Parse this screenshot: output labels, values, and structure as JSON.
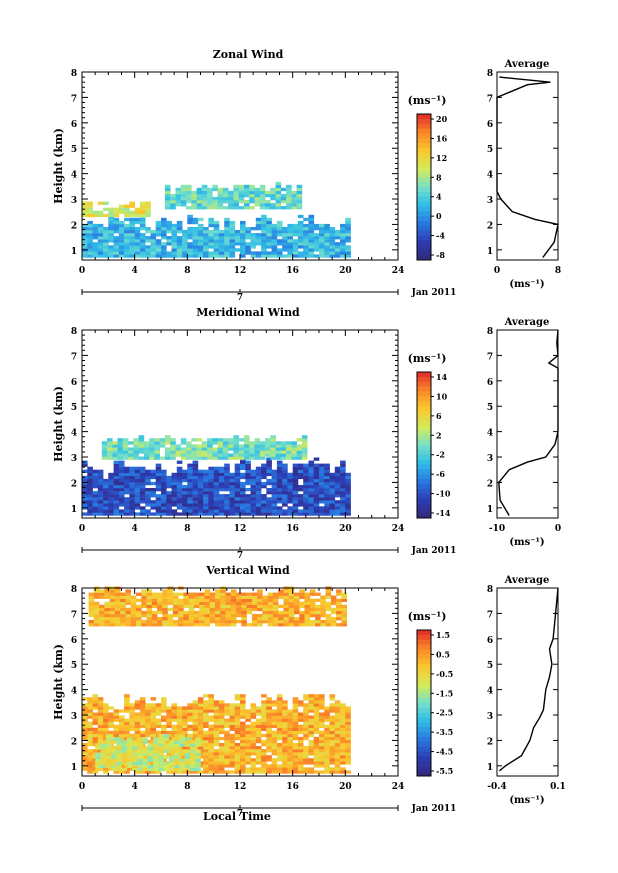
{
  "date_label": "Jan 2011",
  "x_bottom_label": "Local Time",
  "date_marker": "7",
  "xticks": [
    "0",
    "4",
    "8",
    "12",
    "16",
    "20",
    "24"
  ],
  "yticks": [
    "1",
    "2",
    "3",
    "4",
    "5",
    "6",
    "7",
    "8"
  ],
  "ylabel": "Height (km)",
  "unit": "(ms⁻¹)",
  "panels": [
    {
      "title": "Zonal Wind",
      "colorbar_ticks": [
        "20",
        "16",
        "12",
        "8",
        "4",
        "0",
        "-4",
        "-8"
      ],
      "avg_title": "Average",
      "avg_xticks": [
        "0",
        "8"
      ],
      "avg_xlabel": "(ms⁻¹)"
    },
    {
      "title": "Meridional Wind",
      "colorbar_ticks": [
        "14",
        "10",
        "6",
        "2",
        "-2",
        "-6",
        "-10",
        "-14"
      ],
      "avg_title": "Average",
      "avg_xticks": [
        "-10",
        "0"
      ],
      "avg_xlabel": "(ms⁻¹)"
    },
    {
      "title": "Vertical Wind",
      "colorbar_ticks": [
        "1.5",
        "0.5",
        "-0.5",
        "-1.5",
        "-2.5",
        "-3.5",
        "-4.5",
        "-5.5"
      ],
      "avg_title": "Average",
      "avg_xticks": [
        "-0.4",
        "0.1"
      ],
      "avg_xlabel": "(ms⁻¹)"
    }
  ],
  "chart_data": [
    {
      "type": "heatmap",
      "title": "Zonal Wind",
      "x_range": [
        0,
        24
      ],
      "y_range": [
        0.6,
        8
      ],
      "ylabel": "Height (km)",
      "colorbar_range": [
        -10,
        22
      ],
      "regions": [
        {
          "x": [
            0,
            20
          ],
          "y": [
            0.7,
            2.3
          ],
          "value": 2
        },
        {
          "x": [
            0,
            5
          ],
          "y": [
            2.3,
            2.9
          ],
          "value": 11
        },
        {
          "x": [
            6.3,
            16.5
          ],
          "y": [
            2.6,
            3.6
          ],
          "value": 5
        }
      ],
      "average_profile": {
        "xlim": [
          0,
          8
        ],
        "points": [
          [
            6,
            0.7
          ],
          [
            7.5,
            1.3
          ],
          [
            8,
            2.0
          ],
          [
            5,
            2.2
          ],
          [
            2,
            2.5
          ],
          [
            0.5,
            3.0
          ],
          [
            0,
            3.3
          ],
          [
            0,
            7.0
          ],
          [
            4,
            7.5
          ],
          [
            7,
            7.6
          ],
          [
            0.3,
            7.8
          ]
        ]
      }
    },
    {
      "type": "heatmap",
      "title": "Meridional Wind",
      "x_range": [
        0,
        24
      ],
      "y_range": [
        0.6,
        8
      ],
      "ylabel": "Height (km)",
      "colorbar_range": [
        -16,
        16
      ],
      "regions": [
        {
          "x": [
            0,
            20
          ],
          "y": [
            0.7,
            2.9
          ],
          "value": -11
        },
        {
          "x": [
            1.5,
            17
          ],
          "y": [
            2.9,
            3.8
          ],
          "value": 0
        }
      ],
      "average_profile": {
        "xlim": [
          -10,
          0
        ],
        "points": [
          [
            -8,
            0.7
          ],
          [
            -9.5,
            1.3
          ],
          [
            -9.7,
            2.0
          ],
          [
            -8,
            2.5
          ],
          [
            -5,
            2.8
          ],
          [
            -2,
            3.0
          ],
          [
            -0.5,
            3.5
          ],
          [
            0,
            4.0
          ],
          [
            0,
            6.5
          ],
          [
            -1.5,
            6.7
          ],
          [
            0,
            7.0
          ],
          [
            -0.2,
            7.5
          ],
          [
            0,
            8
          ]
        ]
      }
    },
    {
      "type": "heatmap",
      "title": "Vertical Wind",
      "x_range": [
        0,
        24
      ],
      "y_range": [
        0.6,
        8
      ],
      "ylabel": "Height (km)",
      "colorbar_range": [
        -6,
        2
      ],
      "regions": [
        {
          "x": [
            0,
            20
          ],
          "y": [
            0.7,
            3.8
          ],
          "value": 0.3
        },
        {
          "x": [
            1,
            9
          ],
          "y": [
            0.8,
            2.2
          ],
          "value": -1.0
        },
        {
          "x": [
            0.5,
            20
          ],
          "y": [
            6.5,
            8.0
          ],
          "value": 0.3
        }
      ],
      "average_profile": {
        "xlim": [
          -0.4,
          0.1
        ],
        "points": [
          [
            -0.38,
            0.8
          ],
          [
            -0.33,
            1.0
          ],
          [
            -0.2,
            1.4
          ],
          [
            -0.13,
            2.0
          ],
          [
            -0.1,
            2.5
          ],
          [
            -0.05,
            2.9
          ],
          [
            -0.02,
            3.2
          ],
          [
            0.0,
            4.0
          ],
          [
            0.03,
            4.5
          ],
          [
            0.05,
            5.0
          ],
          [
            0.03,
            5.6
          ],
          [
            0.06,
            6.0
          ],
          [
            0.08,
            7.0
          ],
          [
            0.1,
            8.0
          ]
        ]
      }
    }
  ]
}
